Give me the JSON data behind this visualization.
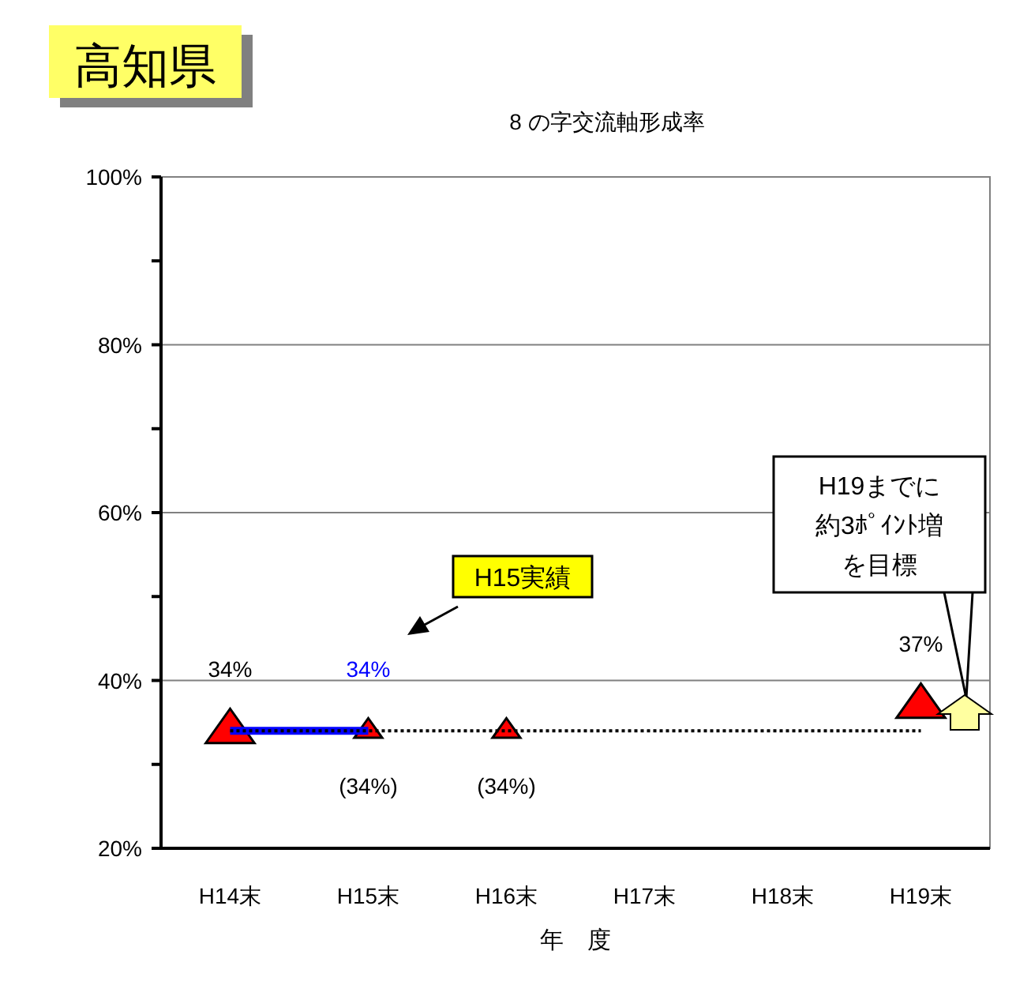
{
  "chart_data": {
    "type": "line",
    "title": "高知県",
    "subtitle": "8 の字交流軸形成率",
    "xlabel": "年　度",
    "categories": [
      "H14末",
      "H15末",
      "H16末",
      "H17末",
      "H18末",
      "H19末"
    ],
    "ylim": [
      20,
      100
    ],
    "yticks": [
      {
        "value": 20,
        "label": "20%"
      },
      {
        "value": 30,
        "label": null
      },
      {
        "value": 40,
        "label": "40%"
      },
      {
        "value": 50,
        "label": null
      },
      {
        "value": 60,
        "label": "60%"
      },
      {
        "value": 70,
        "label": null
      },
      {
        "value": 80,
        "label": "80%"
      },
      {
        "value": 90,
        "label": null
      },
      {
        "value": 100,
        "label": "100%"
      }
    ],
    "grid": "y",
    "series": [
      {
        "color": "#000000",
        "line_style": "dotted",
        "marker": "none",
        "values": [
          34,
          34,
          34,
          34,
          34,
          34
        ]
      },
      {
        "color": "#0000ff",
        "line_style": "solid",
        "marker": "none",
        "values": [
          34,
          34,
          null,
          null,
          null,
          null
        ],
        "value_labels": [
          null,
          "34%",
          null,
          null,
          null,
          null
        ]
      },
      {
        "type": "scatter",
        "color": "#ff0000",
        "marker": "triangle",
        "values": [
          34,
          null,
          null,
          null,
          null,
          37
        ],
        "value_labels": [
          "34%",
          null,
          null,
          null,
          null,
          "37%"
        ]
      },
      {
        "type": "scatter",
        "color": "#ff0000",
        "marker": "triangle",
        "values": [
          null,
          34,
          34,
          null,
          null,
          null
        ],
        "value_labels": [
          null,
          "(34%)",
          "(34%)",
          null,
          null,
          null
        ]
      }
    ],
    "annotations": [
      "H15実績",
      "H19までに約3ﾎﾟｲﾝﾄ増を目標"
    ]
  }
}
